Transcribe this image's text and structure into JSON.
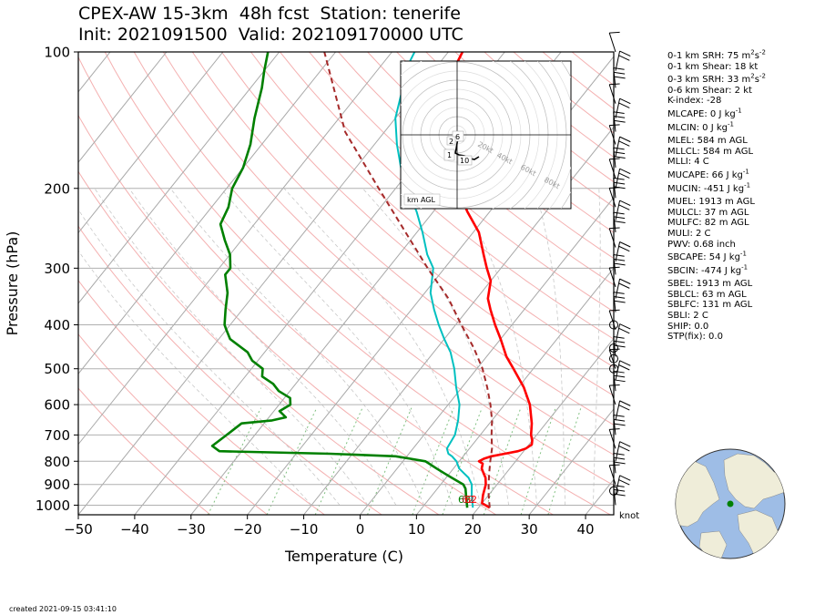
{
  "title_line1": "CPEX-AW 15-3km  48h fcst  Station: tenerife",
  "title_line2": "Init: 2021091500  Valid: 202109170000 UTC",
  "created": "created 2021-09-15 03:41:10",
  "colors": {
    "temperature": "#ff0000",
    "dewpoint": "#008000",
    "wetbulb": "#00c0c0",
    "parcel": "#a52a2a",
    "isobar": "#b0b0b0",
    "isotherm": "#a8a8a8",
    "dry_adiabat": "#f4b0b0",
    "moist_adiabat": "#c8c8c8",
    "mixing_ratio": "#80c080",
    "ocean": "#9ebde6",
    "land": "#efedd9"
  },
  "indices": [
    {
      "label": "0-1 km SRH: 75 m",
      "sup1": "2",
      "mid": "s",
      "sup2": "-2",
      "gap": false
    },
    {
      "label": "0-1 km Shear: 18 kt",
      "gap": false
    },
    {
      "label": "0-3 km SRH: 33 m",
      "sup1": "2",
      "mid": "s",
      "sup2": "-2",
      "gap": true
    },
    {
      "label": "0-6 km Shear: 2 kt",
      "gap": false
    },
    {
      "label": "K-index: -28",
      "gap": false
    },
    {
      "label": "MLCAPE: 0 J kg",
      "sup1": "-1",
      "gap": true
    },
    {
      "label": "MLCIN: 0 J kg",
      "sup1": "-1",
      "gap": true
    },
    {
      "label": "MLEL: 584 m AGL",
      "gap": true
    },
    {
      "label": "MLLCL: 584 m AGL",
      "gap": false
    },
    {
      "label": "MLLI: 4 C",
      "gap": false
    },
    {
      "label": "MUCAPE: 66 J kg",
      "sup1": "-1",
      "gap": true
    },
    {
      "label": "MUCIN: -451 J kg",
      "sup1": "-1",
      "gap": true
    },
    {
      "label": "MUEL: 1913 m AGL",
      "gap": true
    },
    {
      "label": "MULCL: 37 m AGL",
      "gap": false
    },
    {
      "label": "MULFC: 82 m AGL",
      "gap": false
    },
    {
      "label": "MULI: 2 C",
      "gap": false
    },
    {
      "label": "PWV: 0.68 inch",
      "gap": false
    },
    {
      "label": "SBCAPE: 54 J kg",
      "sup1": "-1",
      "gap": true
    },
    {
      "label": "SBCIN: -474 J kg",
      "sup1": "-1",
      "gap": true
    },
    {
      "label": "SBEL: 1913 m AGL",
      "gap": true
    },
    {
      "label": "SBLCL: 63 m AGL",
      "gap": false
    },
    {
      "label": "SBLFC: 131 m AGL",
      "gap": false
    },
    {
      "label": "SBLI: 2 C",
      "gap": false
    },
    {
      "label": "SHIP: 0.0",
      "gap": false
    },
    {
      "label": "STP(fix): 0.0",
      "gap": false
    }
  ],
  "chart_data": {
    "type": "line",
    "chart_kind": "skew-T log-P sounding",
    "xlabel": "Temperature (C)",
    "ylabel": "Pressure (hPa)",
    "xlim": [
      -50,
      45
    ],
    "ylim": [
      1050,
      100
    ],
    "y_scale": "log",
    "x_ticks": [
      -50,
      -40,
      -30,
      -20,
      -10,
      0,
      10,
      20,
      30,
      40
    ],
    "y_ticks": [
      100,
      200,
      300,
      400,
      500,
      600,
      700,
      800,
      900,
      1000
    ],
    "grid": true,
    "wind_unit": "knot",
    "series": [
      {
        "key": "temperature",
        "points": [
          [
            1013,
            22
          ],
          [
            990,
            20
          ],
          [
            950,
            19
          ],
          [
            900,
            18
          ],
          [
            870,
            17
          ],
          [
            850,
            16
          ],
          [
            830,
            15
          ],
          [
            810,
            14.5
          ],
          [
            800,
            13.5
          ],
          [
            790,
            14
          ],
          [
            780,
            15
          ],
          [
            770,
            17
          ],
          [
            760,
            19
          ],
          [
            750,
            20
          ],
          [
            735,
            20.5
          ],
          [
            720,
            20
          ],
          [
            700,
            19
          ],
          [
            660,
            17.5
          ],
          [
            600,
            14.5
          ],
          [
            550,
            11
          ],
          [
            500,
            6.5
          ],
          [
            470,
            3.5
          ],
          [
            430,
            0
          ],
          [
            400,
            -3
          ],
          [
            370,
            -6
          ],
          [
            350,
            -8
          ],
          [
            320,
            -10
          ],
          [
            300,
            -12.5
          ],
          [
            280,
            -15
          ],
          [
            250,
            -19
          ],
          [
            225,
            -24
          ],
          [
            200,
            -29
          ],
          [
            180,
            -33.5
          ],
          [
            160,
            -38
          ],
          [
            140,
            -42
          ],
          [
            120,
            -45
          ],
          [
            110,
            -46.5
          ],
          [
            100,
            -47.5
          ]
        ]
      },
      {
        "key": "dewpoint",
        "points": [
          [
            1013,
            18
          ],
          [
            950,
            16
          ],
          [
            920,
            15
          ],
          [
            900,
            14
          ],
          [
            870,
            11
          ],
          [
            850,
            9
          ],
          [
            830,
            7
          ],
          [
            810,
            5
          ],
          [
            800,
            4
          ],
          [
            790,
            1
          ],
          [
            780,
            -2
          ],
          [
            770,
            -14
          ],
          [
            760,
            -34
          ],
          [
            740,
            -36
          ],
          [
            700,
            -35
          ],
          [
            660,
            -34
          ],
          [
            650,
            -29
          ],
          [
            640,
            -27
          ],
          [
            620,
            -29
          ],
          [
            600,
            -28
          ],
          [
            580,
            -29
          ],
          [
            560,
            -32
          ],
          [
            540,
            -34
          ],
          [
            520,
            -37
          ],
          [
            500,
            -38
          ],
          [
            480,
            -41
          ],
          [
            460,
            -43
          ],
          [
            430,
            -48
          ],
          [
            410,
            -50
          ],
          [
            400,
            -51
          ],
          [
            370,
            -53
          ],
          [
            340,
            -55
          ],
          [
            310,
            -58
          ],
          [
            300,
            -58
          ],
          [
            280,
            -60
          ],
          [
            260,
            -63
          ],
          [
            240,
            -66
          ],
          [
            220,
            -67
          ],
          [
            200,
            -69
          ],
          [
            180,
            -70
          ],
          [
            160,
            -72
          ],
          [
            140,
            -75
          ],
          [
            120,
            -78
          ],
          [
            110,
            -80
          ],
          [
            100,
            -82
          ]
        ]
      },
      {
        "key": "wetbulb",
        "points": [
          [
            1013,
            19
          ],
          [
            950,
            17
          ],
          [
            900,
            15.5
          ],
          [
            870,
            14
          ],
          [
            850,
            12.5
          ],
          [
            830,
            11
          ],
          [
            800,
            9.5
          ],
          [
            780,
            8
          ],
          [
            770,
            7
          ],
          [
            750,
            6
          ],
          [
            700,
            5.5
          ],
          [
            650,
            4
          ],
          [
            600,
            2
          ],
          [
            550,
            -1
          ],
          [
            500,
            -4
          ],
          [
            460,
            -7
          ],
          [
            430,
            -10
          ],
          [
            400,
            -13
          ],
          [
            370,
            -16
          ],
          [
            340,
            -19
          ],
          [
            300,
            -22
          ],
          [
            280,
            -25
          ],
          [
            250,
            -29
          ],
          [
            225,
            -33
          ],
          [
            200,
            -38
          ],
          [
            180,
            -42
          ],
          [
            160,
            -46
          ],
          [
            140,
            -50
          ],
          [
            120,
            -53
          ],
          [
            110,
            -55
          ],
          [
            100,
            -56
          ]
        ]
      },
      {
        "key": "parcel",
        "points": [
          [
            1013,
            22
          ],
          [
            950,
            20
          ],
          [
            900,
            18.5
          ],
          [
            850,
            17
          ],
          [
            800,
            15.5
          ],
          [
            750,
            14
          ],
          [
            700,
            12
          ],
          [
            650,
            10
          ],
          [
            600,
            7.5
          ],
          [
            550,
            4.5
          ],
          [
            500,
            1
          ],
          [
            450,
            -3.5
          ],
          [
            400,
            -9
          ],
          [
            350,
            -15
          ],
          [
            300,
            -23
          ],
          [
            250,
            -32
          ],
          [
            200,
            -43
          ],
          [
            150,
            -57
          ],
          [
            100,
            -72
          ]
        ]
      }
    ],
    "sfc_labels": [
      "62",
      "62",
      "62"
    ],
    "wind_barbs_p": [
      100,
      110,
      120,
      130,
      140,
      150,
      160,
      170,
      180,
      190,
      200,
      210,
      220,
      235,
      250,
      270,
      290,
      310,
      330,
      350,
      375,
      410,
      440,
      470,
      500,
      530,
      560,
      600,
      650,
      700,
      750,
      800,
      850,
      900,
      950,
      1000
    ],
    "calm_levels_p": [
      400,
      450,
      475,
      500,
      930
    ],
    "hodograph": {
      "rings": [
        "20kt",
        "40kt",
        "60kt",
        "80kt"
      ],
      "height_labels": [
        "6",
        "2",
        "1",
        "10"
      ],
      "label": "km AGL"
    }
  }
}
